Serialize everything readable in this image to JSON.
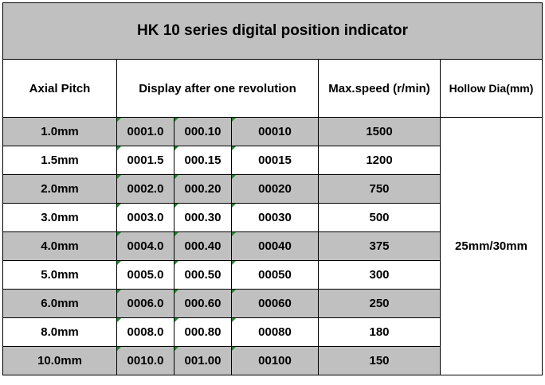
{
  "title": "HK 10 series digital position indicator",
  "headers": {
    "axial_pitch": "Axial Pitch",
    "display": "Display after one revolution",
    "max_speed": "Max.speed (r/min)",
    "hollow_dia": "Hollow Dia(mm)"
  },
  "hollow_value": "25mm/30mm",
  "rows": [
    {
      "pitch": "1.0mm",
      "d1": "0001.0",
      "d2": "000.10",
      "d3": "00010",
      "speed": "1500"
    },
    {
      "pitch": "1.5mm",
      "d1": "0001.5",
      "d2": "000.15",
      "d3": "00015",
      "speed": "1200"
    },
    {
      "pitch": "2.0mm",
      "d1": "0002.0",
      "d2": "000.20",
      "d3": "00020",
      "speed": "750"
    },
    {
      "pitch": "3.0mm",
      "d1": "0003.0",
      "d2": "000.30",
      "d3": "00030",
      "speed": "500"
    },
    {
      "pitch": "4.0mm",
      "d1": "0004.0",
      "d2": "000.40",
      "d3": "00040",
      "speed": "375"
    },
    {
      "pitch": "5.0mm",
      "d1": "0005.0",
      "d2": "000.50",
      "d3": "00050",
      "speed": "300"
    },
    {
      "pitch": "6.0mm",
      "d1": "0006.0",
      "d2": "000.60",
      "d3": "00060",
      "speed": "250"
    },
    {
      "pitch": "8.0mm",
      "d1": "0008.0",
      "d2": "000.80",
      "d3": "00080",
      "speed": "180"
    },
    {
      "pitch": "10.0mm",
      "d1": "0010.0",
      "d2": "001.00",
      "d3": "00100",
      "speed": "150"
    }
  ],
  "colors": {
    "shaded_row": "#c0c0c0",
    "plain_row": "#ffffff",
    "cell_marker": "#1a8a2a"
  }
}
